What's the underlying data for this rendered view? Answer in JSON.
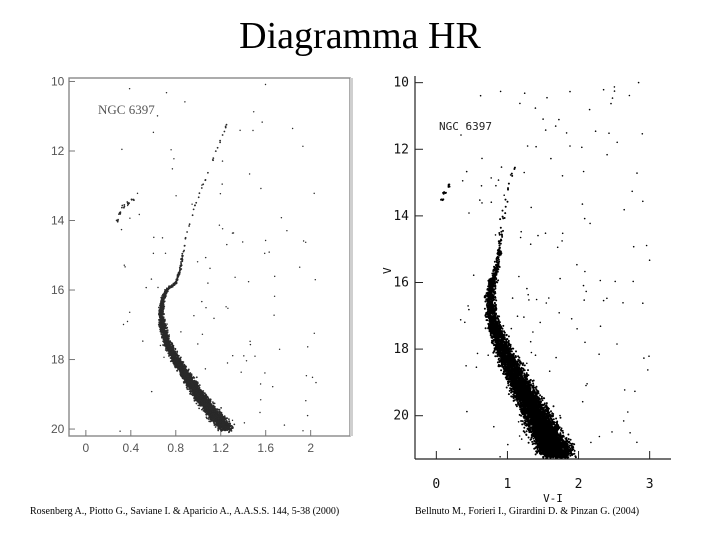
{
  "slide": {
    "title": "Diagramma HR",
    "left_caption": "Rosenberg A., Piotto G., Saviane I. & Aparicio A., A.A.S.S. 144, 5-38 (2000)",
    "right_caption": "Bellnuto M., Forieri I., Girardini D. & Pinzan G. (2004)"
  },
  "chart_data": [
    {
      "type": "scatter",
      "annotation": "NGC 6397",
      "xlabel": "",
      "ylabel": "",
      "xlim": [
        -0.15,
        2.35
      ],
      "ylim": [
        20.2,
        9.9
      ],
      "y_inverted": true,
      "x_ticks": [
        "0",
        "0.4",
        "0.8",
        "1.2",
        "1.6",
        "2"
      ],
      "x_tick_values": [
        0,
        0.4,
        0.8,
        1.2,
        1.6,
        2
      ],
      "y_ticks": [
        "10",
        "12",
        "14",
        "16",
        "18",
        "20"
      ],
      "y_tick_values": [
        10,
        12,
        14,
        16,
        18,
        20
      ],
      "point_color": "#2a2a2a",
      "sequence_points": [
        [
          1.28,
          11.0
        ],
        [
          1.22,
          11.5
        ],
        [
          1.16,
          12.0
        ],
        [
          1.1,
          12.5
        ],
        [
          1.04,
          13.0
        ],
        [
          0.98,
          13.5
        ],
        [
          0.93,
          14.0
        ],
        [
          0.89,
          14.5
        ],
        [
          0.86,
          15.0
        ],
        [
          0.84,
          15.4
        ],
        [
          0.8,
          15.8
        ],
        [
          0.72,
          16.0
        ],
        [
          0.68,
          16.3
        ],
        [
          0.67,
          16.6
        ],
        [
          0.68,
          17.0
        ],
        [
          0.72,
          17.5
        ],
        [
          0.8,
          18.0
        ],
        [
          0.9,
          18.5
        ],
        [
          1.0,
          19.0
        ],
        [
          1.12,
          19.5
        ],
        [
          1.25,
          20.0
        ]
      ],
      "secondary_points": [
        [
          0.42,
          13.4
        ],
        [
          0.37,
          13.5
        ],
        [
          0.33,
          13.6
        ],
        [
          0.3,
          13.8
        ],
        [
          0.28,
          14.0
        ]
      ]
    },
    {
      "type": "scatter",
      "annotation": "NGC 6397",
      "xlabel": "V-I",
      "ylabel": "V",
      "xlim": [
        -0.3,
        3.3
      ],
      "ylim": [
        21.3,
        9.8
      ],
      "y_inverted": true,
      "x_ticks": [
        "0",
        "1",
        "2",
        "3"
      ],
      "x_tick_values": [
        0,
        1,
        2,
        3
      ],
      "y_ticks": [
        "10",
        "12",
        "14",
        "16",
        "18",
        "20"
      ],
      "y_tick_values": [
        10,
        12,
        14,
        16,
        18,
        20
      ],
      "point_color": "#000000",
      "sequence_points": [
        [
          1.1,
          12.5
        ],
        [
          1.03,
          13.0
        ],
        [
          0.98,
          13.5
        ],
        [
          0.94,
          14.0
        ],
        [
          0.91,
          14.5
        ],
        [
          0.89,
          15.0
        ],
        [
          0.86,
          15.5
        ],
        [
          0.8,
          15.9
        ],
        [
          0.76,
          16.3
        ],
        [
          0.77,
          16.8
        ],
        [
          0.82,
          17.3
        ],
        [
          0.9,
          17.8
        ],
        [
          1.0,
          18.3
        ],
        [
          1.12,
          18.8
        ],
        [
          1.24,
          19.3
        ],
        [
          1.36,
          19.8
        ],
        [
          1.48,
          20.3
        ],
        [
          1.6,
          20.8
        ],
        [
          1.72,
          21.2
        ]
      ],
      "secondary_points": [
        [
          0.18,
          13.1
        ],
        [
          0.12,
          13.3
        ],
        [
          0.08,
          13.5
        ]
      ]
    }
  ]
}
